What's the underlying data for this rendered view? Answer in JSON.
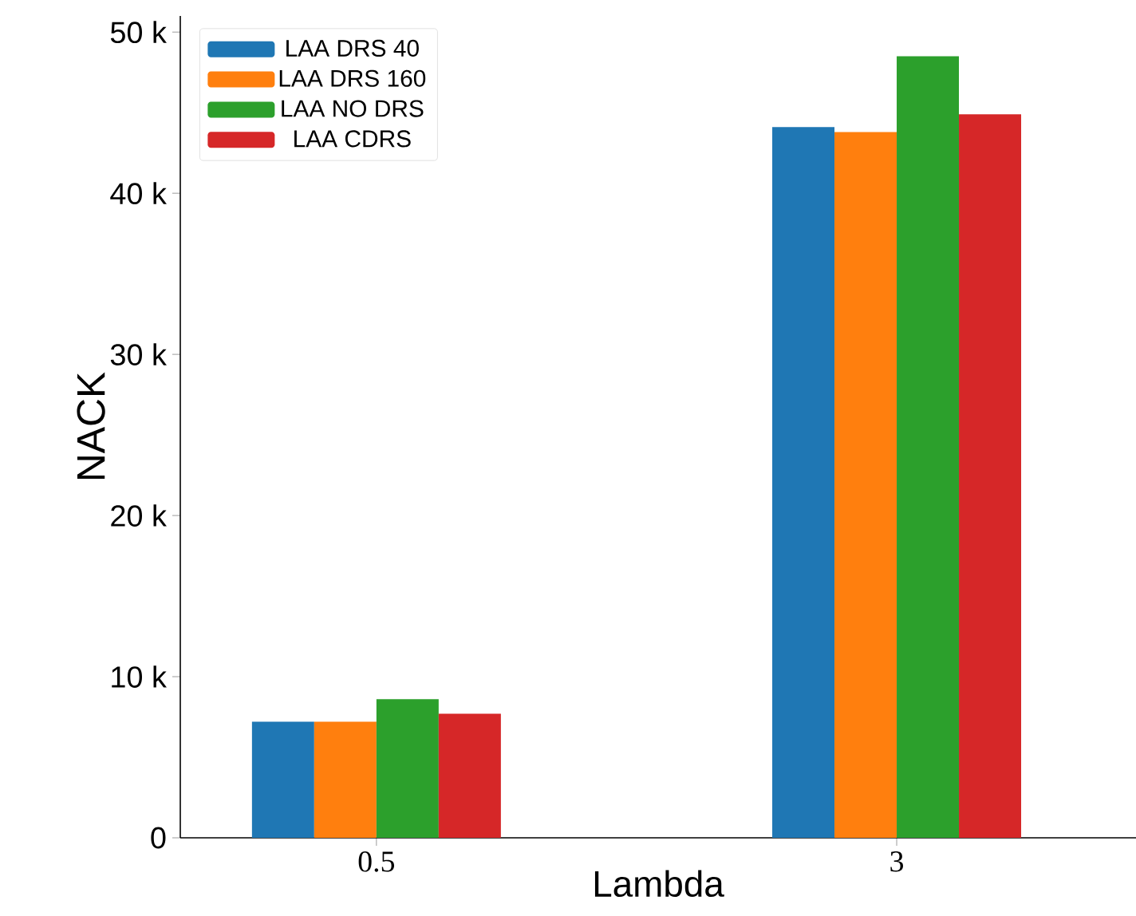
{
  "chart_data": {
    "type": "bar",
    "xlabel": "Lambda",
    "ylabel": "NACK",
    "categories": [
      "0.5",
      "3"
    ],
    "series": [
      {
        "name": "LAA DRS 40",
        "color": "#1f77b4",
        "values": [
          7200,
          44100
        ]
      },
      {
        "name": "LAA DRS 160",
        "color": "#ff7f0e",
        "values": [
          7200,
          43800
        ]
      },
      {
        "name": "LAA NO DRS",
        "color": "#2ca02c",
        "values": [
          8600,
          48500
        ]
      },
      {
        "name": "LAA CDRS",
        "color": "#d62728",
        "values": [
          7700,
          44900
        ]
      }
    ],
    "ylim": [
      0,
      51000
    ],
    "yticks": [
      0,
      {
        "value": 10000,
        "label": "10 k"
      },
      {
        "value": 20000,
        "label": "20 k"
      },
      {
        "value": 30000,
        "label": "30 k"
      },
      {
        "value": 40000,
        "label": "40 k"
      },
      {
        "value": 50000,
        "label": "50 k"
      }
    ],
    "grid": false,
    "legend": "top left"
  }
}
